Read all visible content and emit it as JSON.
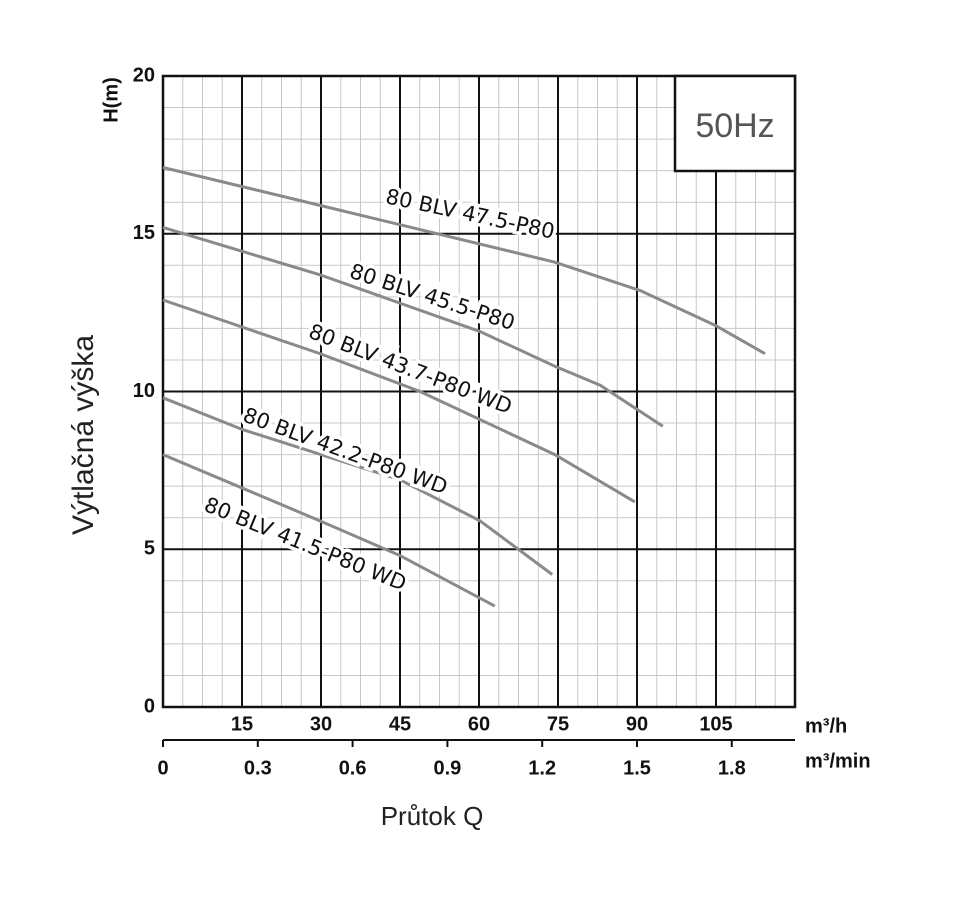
{
  "chart_data": {
    "type": "line",
    "x_label": "Průtok Q",
    "y_label": "Výtlačná výška",
    "y_unit": "H(m)",
    "x_unit": "m³/h",
    "x2_unit": "m³/min",
    "annotation": "50Hz",
    "xlim": [
      0,
      120
    ],
    "xticks": [
      15,
      30,
      45,
      60,
      75,
      90,
      105
    ],
    "x2lim": [
      0,
      2.0
    ],
    "x2ticks": [
      0,
      0.3,
      0.6,
      0.9,
      1.2,
      1.5,
      1.8
    ],
    "ylim": [
      0,
      20
    ],
    "yticks": [
      0,
      5,
      10,
      15,
      20
    ],
    "grid": true,
    "series": [
      {
        "name": "80 BLV 47.5-P80",
        "color": "#8a8a8a",
        "x": [
          0,
          29.8,
          74.4,
          90.6,
          104.8,
          114.3
        ],
        "values": [
          17.1,
          15.9,
          14.1,
          13.2,
          12.1,
          11.2
        ]
      },
      {
        "name": "80 BLV 45.5-P80",
        "color": "#8a8a8a",
        "x": [
          0,
          29.8,
          60.2,
          74.4,
          83,
          94.9
        ],
        "values": [
          15.2,
          13.7,
          11.9,
          10.8,
          10.2,
          8.9
        ]
      },
      {
        "name": "80 BLV 43.7-P80 WD",
        "color": "#8a8a8a",
        "x": [
          0,
          29.8,
          48.8,
          74.4,
          89.6
        ],
        "values": [
          12.9,
          11.2,
          10.0,
          8.0,
          6.5
        ]
      },
      {
        "name": "80 BLV 42.2-P80 WD",
        "color": "#8a8a8a",
        "x": [
          0,
          15,
          45,
          60.2,
          73.9
        ],
        "values": [
          9.8,
          8.8,
          7.2,
          5.9,
          4.2
        ]
      },
      {
        "name": "80 BLV 41.5-P80 WD",
        "color": "#8a8a8a",
        "x": [
          0,
          29.8,
          45,
          63
        ],
        "values": [
          8.0,
          5.9,
          4.8,
          3.2
        ]
      }
    ]
  }
}
